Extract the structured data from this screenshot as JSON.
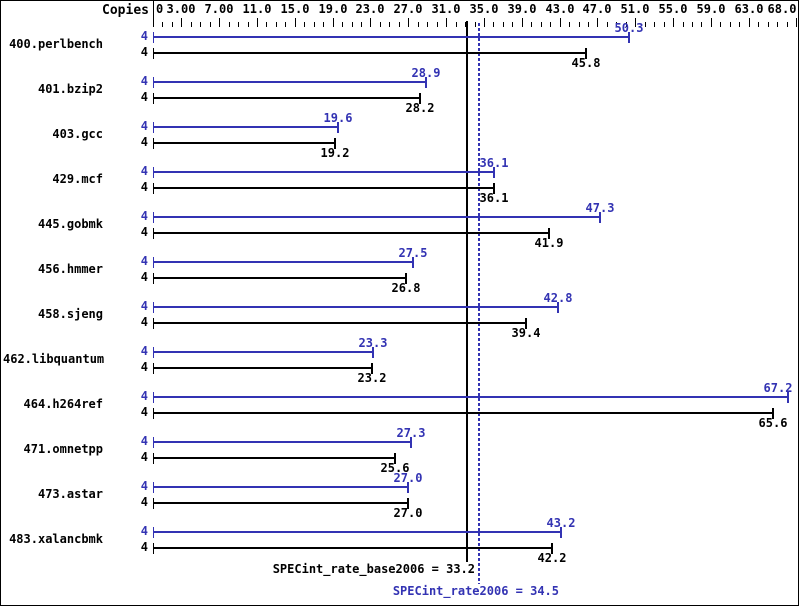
{
  "copies_header": "Copies",
  "summary": {
    "base_label": "SPECint_rate_base2006 = 33.2",
    "peak_label": "SPECint_rate2006 = 34.5"
  },
  "colors": {
    "peak": "#3333b3",
    "base": "#000000",
    "background": "#ffffff",
    "border": "#000000"
  },
  "chart_data": {
    "type": "bar",
    "orientation": "horizontal",
    "title": "",
    "xlabel": "",
    "ylabel": "",
    "xlim": [
      0,
      68
    ],
    "grid": false,
    "legend_position": "none",
    "axis_minor_tick_step": 1,
    "axis_major_ticks": [
      3,
      7,
      11,
      15,
      19,
      23,
      27,
      31,
      35,
      39,
      43,
      47,
      51,
      55,
      59,
      63,
      68
    ],
    "axis_labels": [
      {
        "value": 0,
        "text": "0"
      },
      {
        "value": 3,
        "text": "3.00"
      },
      {
        "value": 7,
        "text": "7.00"
      },
      {
        "value": 11,
        "text": "11.0"
      },
      {
        "value": 15,
        "text": "15.0"
      },
      {
        "value": 19,
        "text": "19.0"
      },
      {
        "value": 23,
        "text": "23.0"
      },
      {
        "value": 27,
        "text": "27.0"
      },
      {
        "value": 31,
        "text": "31.0"
      },
      {
        "value": 35,
        "text": "35.0"
      },
      {
        "value": 39,
        "text": "39.0"
      },
      {
        "value": 43,
        "text": "43.0"
      },
      {
        "value": 47,
        "text": "47.0"
      },
      {
        "value": 51,
        "text": "51.0"
      },
      {
        "value": 55,
        "text": "55.0"
      },
      {
        "value": 59,
        "text": "59.0"
      },
      {
        "value": 63,
        "text": "63.0"
      },
      {
        "value": 68,
        "text": "68.0"
      }
    ],
    "series": [
      {
        "name": "SPECint_rate2006 (peak)",
        "color": "#3333b3"
      },
      {
        "name": "SPECint_rate_base2006 (base)",
        "color": "#000000"
      }
    ],
    "benchmarks": [
      {
        "name": "400.perlbench",
        "copies_peak": 4,
        "copies_base": 4,
        "peak": 50.3,
        "base": 45.8
      },
      {
        "name": "401.bzip2",
        "copies_peak": 4,
        "copies_base": 4,
        "peak": 28.9,
        "base": 28.2
      },
      {
        "name": "403.gcc",
        "copies_peak": 4,
        "copies_base": 4,
        "peak": 19.6,
        "base": 19.2
      },
      {
        "name": "429.mcf",
        "copies_peak": 4,
        "copies_base": 4,
        "peak": 36.1,
        "base": 36.1
      },
      {
        "name": "445.gobmk",
        "copies_peak": 4,
        "copies_base": 4,
        "peak": 47.3,
        "base": 41.9
      },
      {
        "name": "456.hmmer",
        "copies_peak": 4,
        "copies_base": 4,
        "peak": 27.5,
        "base": 26.8
      },
      {
        "name": "458.sjeng",
        "copies_peak": 4,
        "copies_base": 4,
        "peak": 42.8,
        "base": 39.4
      },
      {
        "name": "462.libquantum",
        "copies_peak": 4,
        "copies_base": 4,
        "peak": 23.3,
        "base": 23.2
      },
      {
        "name": "464.h264ref",
        "copies_peak": 4,
        "copies_base": 4,
        "peak": 67.2,
        "base": 65.6
      },
      {
        "name": "471.omnetpp",
        "copies_peak": 4,
        "copies_base": 4,
        "peak": 27.3,
        "base": 25.6
      },
      {
        "name": "473.astar",
        "copies_peak": 4,
        "copies_base": 4,
        "peak": 27.0,
        "base": 27.0
      },
      {
        "name": "483.xalancbmk",
        "copies_peak": 4,
        "copies_base": 4,
        "peak": 43.2,
        "base": 42.2
      }
    ],
    "reference_lines": [
      {
        "value": 33.2,
        "style": "solid",
        "color": "#000000",
        "label": "SPECint_rate_base2006 = 33.2"
      },
      {
        "value": 34.5,
        "style": "dotted",
        "color": "#3333b3",
        "label": "SPECint_rate2006 = 34.5"
      }
    ]
  }
}
